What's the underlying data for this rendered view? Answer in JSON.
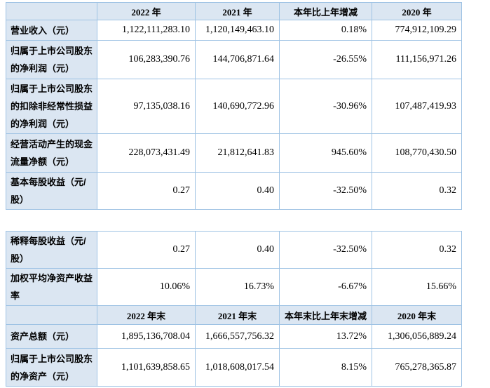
{
  "colors": {
    "page_bg": "#ffffff",
    "header_bg": "#dbe6f2",
    "label_bg": "#dbe6f2",
    "border": "#9fc3e4",
    "text": "#000000"
  },
  "table1": {
    "header": [
      "",
      "2022 年",
      "2021 年",
      "本年比上年增减",
      "2020 年"
    ],
    "rows": [
      {
        "label": "营业收入（元）",
        "values": [
          "1,122,111,283.10",
          "1,120,149,463.10",
          "0.18%",
          "774,912,109.29"
        ]
      },
      {
        "label": "归属于上市公司股东的净利润（元）",
        "values": [
          "106,283,390.76",
          "144,706,871.64",
          "-26.55%",
          "111,156,971.26"
        ]
      },
      {
        "label": "归属于上市公司股东的扣除非经常性损益的净利润（元）",
        "values": [
          "97,135,038.16",
          "140,690,772.96",
          "-30.96%",
          "107,487,419.93"
        ]
      },
      {
        "label": "经营活动产生的现金流量净额（元）",
        "values": [
          "228,073,431.49",
          "21,812,641.83",
          "945.60%",
          "108,770,430.50"
        ]
      },
      {
        "label": "基本每股收益（元/股）",
        "values": [
          "0.27",
          "0.40",
          "-32.50%",
          "0.32"
        ]
      }
    ]
  },
  "table2": {
    "rows_top": [
      {
        "label": "稀释每股收益（元/股）",
        "values": [
          "0.27",
          "0.40",
          "-32.50%",
          "0.32"
        ]
      },
      {
        "label": "加权平均净资产收益率",
        "values": [
          "10.06%",
          "16.73%",
          "-6.67%",
          "15.66%"
        ]
      }
    ],
    "header": [
      "",
      "2022 年末",
      "2021 年末",
      "本年末比上年末增减",
      "2020 年末"
    ],
    "rows_bottom": [
      {
        "label": "资产总额（元）",
        "values": [
          "1,895,136,708.04",
          "1,666,557,756.32",
          "13.72%",
          "1,306,056,889.24"
        ]
      },
      {
        "label": "归属于上市公司股东的净资产（元）",
        "values": [
          "1,101,639,858.65",
          "1,018,608,017.54",
          "8.15%",
          "765,278,365.87"
        ]
      }
    ]
  }
}
